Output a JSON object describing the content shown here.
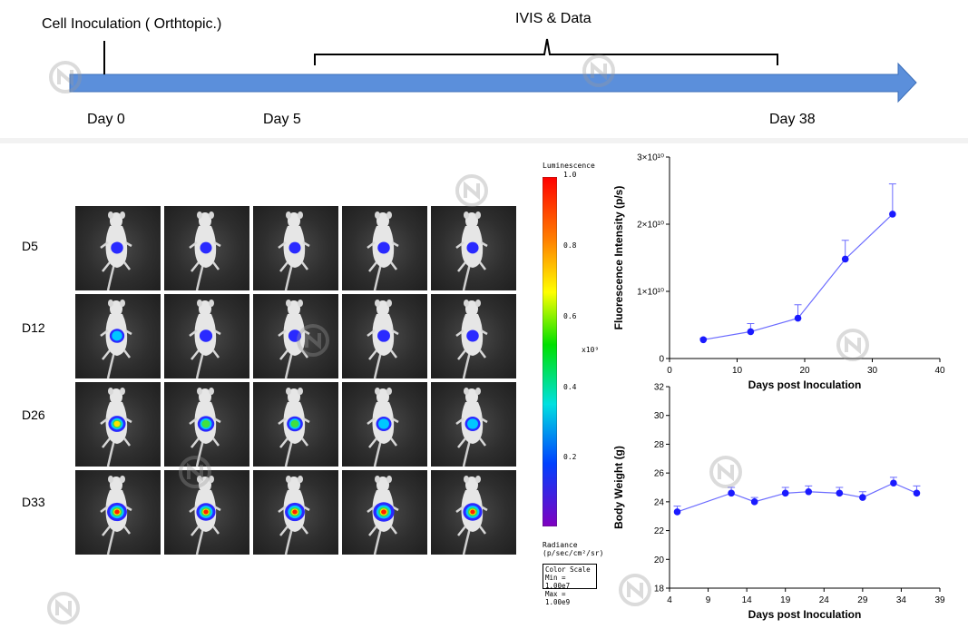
{
  "timeline": {
    "inoculation_label": "Cell Inoculation ( Orthtopic.)",
    "ivis_label": "IVIS & Data",
    "day_labels": [
      "Day 0",
      "Day 5",
      "Day 38"
    ]
  },
  "imaging": {
    "rows": [
      "D5",
      "D12",
      "D26",
      "D33"
    ],
    "columns": 5,
    "signal_level": [
      [
        0.25,
        0.22,
        0.22,
        0.25,
        0.22
      ],
      [
        0.45,
        0.3,
        0.3,
        0.28,
        0.25
      ],
      [
        0.65,
        0.6,
        0.55,
        0.5,
        0.5
      ],
      [
        0.85,
        0.8,
        0.85,
        0.95,
        0.8
      ]
    ],
    "scale": {
      "title": "Luminescence",
      "ticks": [
        "1.0",
        "0.8",
        "0.6",
        "0.4",
        "0.2"
      ],
      "multiplier": "x10⁹",
      "units_line1": "Radiance",
      "units_line2": "(p/sec/cm²/sr)",
      "box_lines": [
        "Color Scale",
        "Min = 1.00e7",
        "Max = 1.00e9"
      ]
    }
  },
  "colors": {
    "timeline_arrow": "#5b8fdb",
    "series": "#1a1aff",
    "series_line": "#6b6bff"
  },
  "chart_data": [
    {
      "type": "line",
      "xlabel": "Days post Inoculation",
      "ylabel": "Fluorescence Intensity (p/s)",
      "xlim": [
        0,
        40
      ],
      "ylim": [
        0,
        30000000000.0
      ],
      "x_ticks": [
        "0",
        "10",
        "20",
        "30",
        "40"
      ],
      "y_ticks": [
        "0",
        "1×10¹⁰",
        "2×10¹⁰",
        "3×10¹⁰"
      ],
      "x": [
        5,
        12,
        19,
        26,
        33
      ],
      "values": [
        2800000000.0,
        4000000000.0,
        6000000000.0,
        14800000000.0,
        21500000000.0
      ],
      "error": [
        200000000.0,
        1200000000.0,
        2000000000.0,
        2800000000.0,
        4500000000.0
      ]
    },
    {
      "type": "line",
      "xlabel": "Days post Inoculation",
      "ylabel": "Body Weight (g)",
      "xlim": [
        4,
        39
      ],
      "ylim": [
        18,
        32
      ],
      "x_ticks": [
        "4",
        "9",
        "14",
        "19",
        "24",
        "29",
        "34",
        "39"
      ],
      "y_ticks": [
        "18",
        "20",
        "22",
        "24",
        "26",
        "28",
        "30",
        "32"
      ],
      "x": [
        5,
        12,
        15,
        19,
        22,
        26,
        29,
        33,
        36
      ],
      "values": [
        23.3,
        24.6,
        24.0,
        24.6,
        24.7,
        24.6,
        24.3,
        25.3,
        24.6
      ],
      "error": [
        0.4,
        0.4,
        0.3,
        0.4,
        0.4,
        0.4,
        0.4,
        0.4,
        0.5
      ]
    }
  ]
}
